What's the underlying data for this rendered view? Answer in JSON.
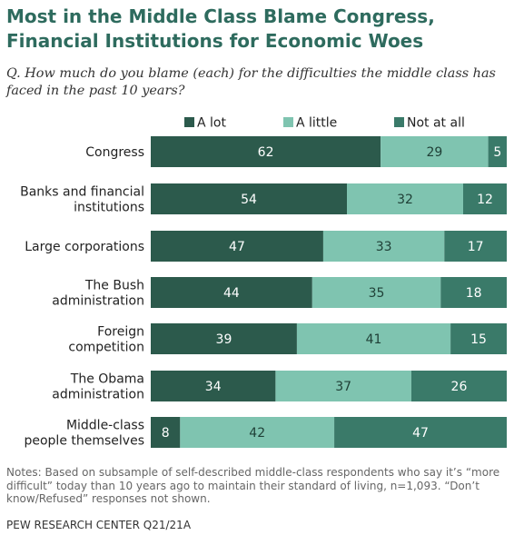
{
  "title": "Most in the Middle Class Blame Congress, Financial Institutions for Economic Woes",
  "question": "Q. How much do you blame (each) for the difficulties the middle class has faced in the past 10 years?",
  "notes": "Notes: Based on subsample of self-described middle-class respondents who say it’s “more difficult” today than 10 years ago to maintain their standard of living, n=1,093. “Don’t know/Refused” responses not shown.",
  "source": "PEW RESEARCH CENTER Q21/21A",
  "colors": {
    "a_lot": "#2c5a4c",
    "a_little": "#7fc4b0",
    "not_at_all": "#3a7a69"
  },
  "chart_data": {
    "type": "bar",
    "orientation": "horizontal",
    "stacked": true,
    "categories": [
      [
        "Congress"
      ],
      [
        "Banks and financial",
        "institutions"
      ],
      [
        "Large corporations"
      ],
      [
        "The Bush",
        "administration"
      ],
      [
        "Foreign",
        "competition"
      ],
      [
        "The Obama",
        "administration"
      ],
      [
        "Middle-class",
        "people themselves"
      ]
    ],
    "series": [
      {
        "name": "A lot",
        "values": [
          62,
          54,
          47,
          44,
          39,
          34,
          8
        ]
      },
      {
        "name": "A little",
        "values": [
          29,
          32,
          33,
          35,
          41,
          37,
          42
        ]
      },
      {
        "name": "Not at all",
        "values": [
          5,
          12,
          17,
          18,
          15,
          26,
          47
        ]
      }
    ],
    "legend_position": "top",
    "value_labels": true,
    "grid": false
  }
}
